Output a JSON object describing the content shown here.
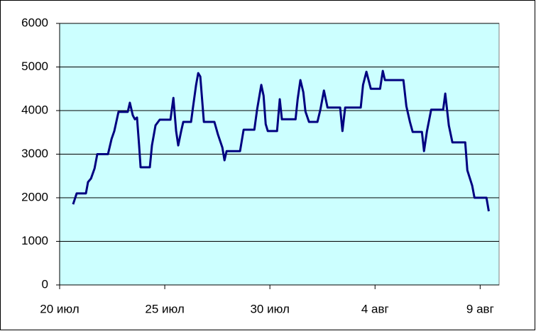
{
  "chart_data": {
    "type": "line",
    "x": [
      0.64,
      0.81,
      1.25,
      1.35,
      1.49,
      1.66,
      1.79,
      2.3,
      2.47,
      2.6,
      2.8,
      3.24,
      3.34,
      3.48,
      3.58,
      3.68,
      3.78,
      3.85,
      4.29,
      4.39,
      4.56,
      4.76,
      5.27,
      5.41,
      5.54,
      5.64,
      5.78,
      5.88,
      6.25,
      6.35,
      6.49,
      6.59,
      6.69,
      6.86,
      7.36,
      7.53,
      7.74,
      7.84,
      7.94,
      8.58,
      8.75,
      9.26,
      9.39,
      9.59,
      9.7,
      9.8,
      9.9,
      10.34,
      10.47,
      10.57,
      10.68,
      11.22,
      11.32,
      11.45,
      11.59,
      11.69,
      11.86,
      12.26,
      12.4,
      12.57,
      12.74,
      13.34,
      13.45,
      13.58,
      14.32,
      14.43,
      14.59,
      14.8,
      15.24,
      15.37,
      15.47,
      16.35,
      16.49,
      16.66,
      16.79,
      17.23,
      17.33,
      17.47,
      17.67,
      18.24,
      18.34,
      18.51,
      18.68,
      19.29,
      19.39,
      19.62,
      19.73,
      20.3,
      20.41
    ],
    "series": [
      {
        "color": "#000080",
        "values": [
          1850,
          2100,
          2100,
          2360,
          2440,
          2670,
          3000,
          3000,
          3350,
          3530,
          3970,
          3970,
          4180,
          3890,
          3800,
          3840,
          3200,
          2700,
          2700,
          3200,
          3660,
          3790,
          3790,
          4290,
          3530,
          3200,
          3530,
          3740,
          3740,
          4100,
          4590,
          4860,
          4780,
          3740,
          3740,
          3450,
          3150,
          2860,
          3070,
          3070,
          3560,
          3560,
          4020,
          4590,
          4340,
          3690,
          3530,
          3530,
          4260,
          3800,
          3800,
          3800,
          4260,
          4700,
          4420,
          3980,
          3740,
          3740,
          4020,
          4460,
          4070,
          4070,
          3530,
          4070,
          4070,
          4590,
          4890,
          4500,
          4500,
          4910,
          4700,
          4700,
          4100,
          3740,
          3510,
          3510,
          3070,
          3530,
          4020,
          4020,
          4390,
          3660,
          3270,
          3270,
          2630,
          2280,
          2000,
          2000,
          1690
        ]
      }
    ],
    "xlim": [
      0,
      20.9
    ],
    "xticks": [
      {
        "value": 0,
        "label": "20 июл"
      },
      {
        "value": 5,
        "label": "25 июл"
      },
      {
        "value": 10,
        "label": "30 июл"
      },
      {
        "value": 15,
        "label": "4 авг"
      },
      {
        "value": 20,
        "label": "9 авг"
      }
    ],
    "ylim": [
      0,
      6000
    ],
    "yticks": [
      0,
      1000,
      2000,
      3000,
      4000,
      5000,
      6000
    ],
    "grid": true,
    "plot_background": "#ccffff"
  }
}
